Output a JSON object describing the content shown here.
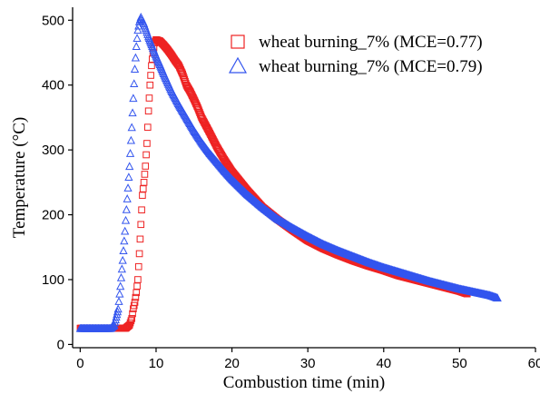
{
  "chart_data": {
    "type": "scatter",
    "title": "",
    "xlabel": "Combustion time (min)",
    "ylabel": "Temperature (°C)",
    "xlim": [
      -1,
      60
    ],
    "ylim": [
      -5,
      520
    ],
    "xticks": [
      0,
      10,
      20,
      30,
      40,
      50,
      60
    ],
    "yticks": [
      0,
      100,
      200,
      300,
      400,
      500
    ],
    "xtick_labels": [
      "0",
      "10",
      "20",
      "30",
      "40",
      "50",
      "60"
    ],
    "ytick_labels": [
      "0",
      "100",
      "200",
      "300",
      "400",
      "500"
    ],
    "grid": false,
    "legend_position": "top-right",
    "series": [
      {
        "name": "wheat burning_7% (MCE=0.77)",
        "marker": "square",
        "color": "#ee2222",
        "x": [
          0,
          2,
          4,
          6,
          6.5,
          6.8,
          7,
          7.2,
          7.4,
          7.6,
          7.8,
          8,
          8.2,
          8.4,
          8.6,
          8.8,
          9,
          9.2,
          9.4,
          9.6,
          9.8,
          10,
          10.5,
          11,
          11.5,
          12,
          12.5,
          13,
          13.5,
          14,
          14.5,
          15,
          15.5,
          16,
          17,
          18,
          19,
          20,
          22,
          24,
          26,
          28,
          30,
          32,
          34,
          36,
          38,
          40,
          42,
          44,
          46,
          48,
          50,
          51
        ],
        "y": [
          25,
          25,
          25,
          25,
          30,
          40,
          55,
          65,
          80,
          100,
          140,
          185,
          230,
          250,
          275,
          310,
          360,
          400,
          430,
          450,
          465,
          470,
          468,
          462,
          455,
          447,
          438,
          430,
          417,
          400,
          390,
          378,
          365,
          350,
          328,
          305,
          285,
          267,
          238,
          212,
          193,
          176,
          160,
          148,
          138,
          129,
          121,
          114,
          106,
          100,
          94,
          88,
          82,
          78
        ]
      },
      {
        "name": "wheat burning_7% (MCE=0.79)",
        "marker": "triangle",
        "color": "#3355ee",
        "x": [
          0,
          2,
          4,
          4.5,
          5,
          5.3,
          5.6,
          5.9,
          6.2,
          6.5,
          6.8,
          7,
          7.2,
          7.4,
          7.6,
          7.8,
          8,
          8.2,
          8.4,
          8.7,
          9,
          9.5,
          10,
          10.5,
          11,
          12,
          13,
          14,
          15,
          16,
          17,
          18,
          19,
          20,
          22,
          24,
          26,
          28,
          30,
          32,
          34,
          36,
          38,
          40,
          42,
          44,
          46,
          48,
          50,
          52,
          54,
          55
        ],
        "y": [
          25,
          25,
          25,
          30,
          55,
          90,
          130,
          175,
          225,
          275,
          335,
          380,
          425,
          460,
          485,
          498,
          505,
          500,
          495,
          485,
          475,
          460,
          445,
          432,
          418,
          392,
          370,
          350,
          330,
          312,
          296,
          282,
          268,
          255,
          232,
          212,
          194,
          180,
          167,
          155,
          145,
          136,
          127,
          119,
          112,
          105,
          98,
          92,
          86,
          81,
          76,
          72
        ]
      }
    ]
  }
}
